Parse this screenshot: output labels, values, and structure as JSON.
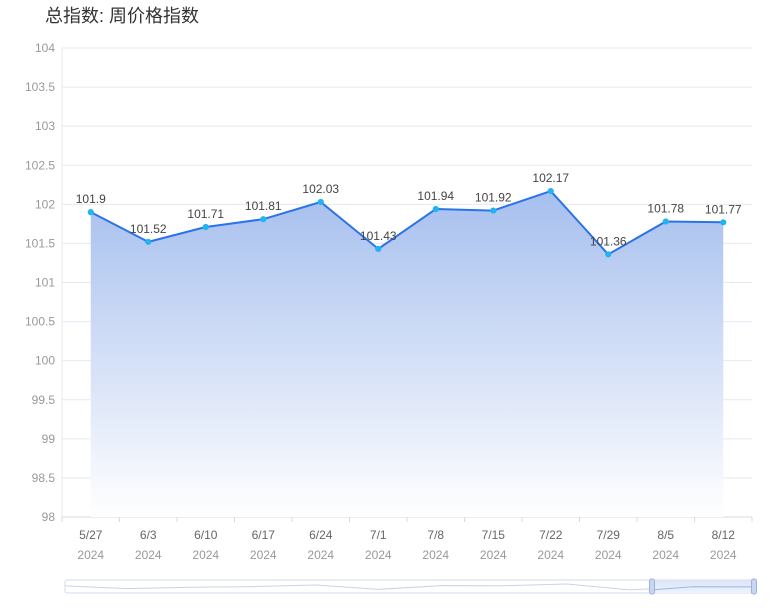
{
  "title": "总指数: 周价格指数",
  "colors": {
    "line": "#2a73e8",
    "point": "#22b4f0",
    "area_top": "#a6bfee",
    "area_bottom": "#ffffff",
    "grid": "#e4e9f2",
    "zoom_handle": "#c7d6f3"
  },
  "chart_data": {
    "type": "area",
    "title": "总指数: 周价格指数",
    "categories": [
      "5/27",
      "6/3",
      "6/10",
      "6/17",
      "6/24",
      "7/1",
      "7/8",
      "7/15",
      "7/22",
      "7/29",
      "8/5",
      "8/12"
    ],
    "category_sublabels": [
      "2024",
      "2024",
      "2024",
      "2024",
      "2024",
      "2024",
      "2024",
      "2024",
      "2024",
      "2024",
      "2024",
      "2024"
    ],
    "series": [
      {
        "values": [
          101.9,
          101.52,
          101.71,
          101.81,
          102.03,
          101.43,
          101.94,
          101.92,
          102.17,
          101.36,
          101.78,
          101.77
        ]
      }
    ],
    "ylim": [
      98,
      104
    ],
    "yticks": [
      "98",
      "98.5",
      "99",
      "99.5",
      "100",
      "100.5",
      "101",
      "101.5",
      "102",
      "102.5",
      "103",
      "103.5",
      "104"
    ],
    "grid": true,
    "data_labels": true,
    "zoom_slider": true
  }
}
